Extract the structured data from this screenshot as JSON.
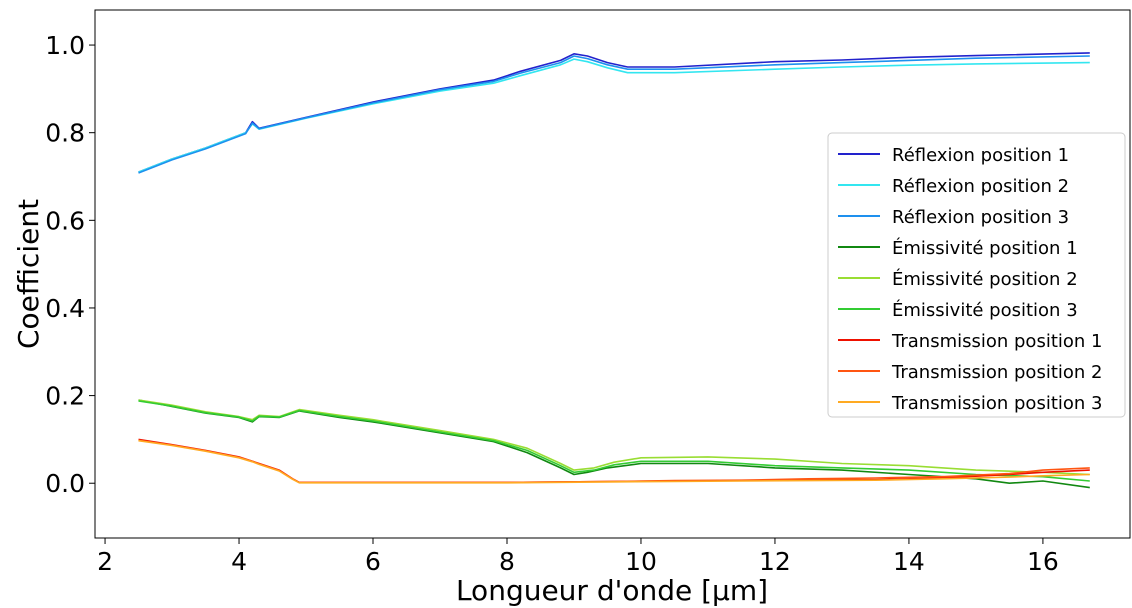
{
  "chart_data": {
    "type": "line",
    "title": "",
    "xlabel": "Longueur d'onde [µm]",
    "ylabel": "Coefficient",
    "xlim": [
      1.85,
      17.3
    ],
    "ylim": [
      -0.125,
      1.08
    ],
    "xticks": [
      2,
      4,
      6,
      8,
      10,
      12,
      14,
      16
    ],
    "yticks": [
      0.0,
      0.2,
      0.4,
      0.6,
      0.8,
      1.0
    ],
    "xtick_labels": [
      "2",
      "4",
      "6",
      "8",
      "10",
      "12",
      "14",
      "16"
    ],
    "ytick_labels": [
      "0.0",
      "0.2",
      "0.4",
      "0.6",
      "0.8",
      "1.0"
    ],
    "grid": false,
    "legend_position": "right",
    "series": [
      {
        "name": "Réflexion position 1",
        "color": "#2222cc",
        "points": [
          [
            2.5,
            0.71
          ],
          [
            3.0,
            0.74
          ],
          [
            3.5,
            0.765
          ],
          [
            4.1,
            0.8
          ],
          [
            4.2,
            0.825
          ],
          [
            4.3,
            0.81
          ],
          [
            5.0,
            0.835
          ],
          [
            6.0,
            0.87
          ],
          [
            7.0,
            0.9
          ],
          [
            7.8,
            0.92
          ],
          [
            8.2,
            0.94
          ],
          [
            8.8,
            0.965
          ],
          [
            9.0,
            0.98
          ],
          [
            9.2,
            0.975
          ],
          [
            9.5,
            0.96
          ],
          [
            9.8,
            0.95
          ],
          [
            10.5,
            0.95
          ],
          [
            12.0,
            0.962
          ],
          [
            13.0,
            0.966
          ],
          [
            14.0,
            0.972
          ],
          [
            15.0,
            0.976
          ],
          [
            16.7,
            0.982
          ]
        ]
      },
      {
        "name": "Réflexion position 2",
        "color": "#33e6f0",
        "points": [
          [
            2.5,
            0.71
          ],
          [
            3.0,
            0.74
          ],
          [
            3.5,
            0.765
          ],
          [
            4.1,
            0.8
          ],
          [
            4.2,
            0.82
          ],
          [
            4.3,
            0.808
          ],
          [
            5.0,
            0.833
          ],
          [
            6.0,
            0.866
          ],
          [
            7.0,
            0.895
          ],
          [
            7.8,
            0.913
          ],
          [
            8.2,
            0.93
          ],
          [
            8.8,
            0.955
          ],
          [
            9.0,
            0.968
          ],
          [
            9.2,
            0.962
          ],
          [
            9.5,
            0.948
          ],
          [
            9.8,
            0.937
          ],
          [
            10.5,
            0.937
          ],
          [
            12.0,
            0.945
          ],
          [
            13.0,
            0.95
          ],
          [
            14.0,
            0.954
          ],
          [
            15.0,
            0.957
          ],
          [
            16.7,
            0.96
          ]
        ]
      },
      {
        "name": "Réflexion position 3",
        "color": "#1e90ee",
        "points": [
          [
            2.5,
            0.708
          ],
          [
            3.0,
            0.738
          ],
          [
            3.5,
            0.763
          ],
          [
            4.1,
            0.798
          ],
          [
            4.2,
            0.822
          ],
          [
            4.3,
            0.809
          ],
          [
            5.0,
            0.834
          ],
          [
            6.0,
            0.868
          ],
          [
            7.0,
            0.898
          ],
          [
            7.8,
            0.917
          ],
          [
            8.2,
            0.936
          ],
          [
            8.8,
            0.96
          ],
          [
            9.0,
            0.975
          ],
          [
            9.2,
            0.969
          ],
          [
            9.5,
            0.955
          ],
          [
            9.8,
            0.945
          ],
          [
            10.5,
            0.945
          ],
          [
            12.0,
            0.955
          ],
          [
            13.0,
            0.96
          ],
          [
            14.0,
            0.965
          ],
          [
            15.0,
            0.97
          ],
          [
            16.7,
            0.975
          ]
        ]
      },
      {
        "name": "Émissivité position 1",
        "color": "#118811",
        "points": [
          [
            2.5,
            0.19
          ],
          [
            3.0,
            0.175
          ],
          [
            3.5,
            0.16
          ],
          [
            4.0,
            0.15
          ],
          [
            4.2,
            0.14
          ],
          [
            4.3,
            0.152
          ],
          [
            4.6,
            0.15
          ],
          [
            4.9,
            0.165
          ],
          [
            5.5,
            0.15
          ],
          [
            6.0,
            0.14
          ],
          [
            7.0,
            0.115
          ],
          [
            7.8,
            0.095
          ],
          [
            8.3,
            0.07
          ],
          [
            8.8,
            0.035
          ],
          [
            9.0,
            0.02
          ],
          [
            9.2,
            0.025
          ],
          [
            9.5,
            0.035
          ],
          [
            10.0,
            0.045
          ],
          [
            11.0,
            0.045
          ],
          [
            12.0,
            0.035
          ],
          [
            13.0,
            0.03
          ],
          [
            14.0,
            0.02
          ],
          [
            15.0,
            0.01
          ],
          [
            15.5,
            0.0
          ],
          [
            16.0,
            0.005
          ],
          [
            16.7,
            -0.01
          ]
        ]
      },
      {
        "name": "Émissivité position 2",
        "color": "#99dd33",
        "points": [
          [
            2.5,
            0.19
          ],
          [
            3.0,
            0.178
          ],
          [
            3.5,
            0.163
          ],
          [
            4.0,
            0.152
          ],
          [
            4.2,
            0.145
          ],
          [
            4.3,
            0.155
          ],
          [
            4.6,
            0.152
          ],
          [
            4.9,
            0.168
          ],
          [
            5.5,
            0.155
          ],
          [
            6.0,
            0.145
          ],
          [
            7.0,
            0.12
          ],
          [
            7.8,
            0.1
          ],
          [
            8.3,
            0.08
          ],
          [
            8.8,
            0.045
          ],
          [
            9.0,
            0.03
          ],
          [
            9.3,
            0.035
          ],
          [
            9.6,
            0.048
          ],
          [
            10.0,
            0.058
          ],
          [
            11.0,
            0.06
          ],
          [
            12.0,
            0.055
          ],
          [
            13.0,
            0.045
          ],
          [
            14.0,
            0.04
          ],
          [
            15.0,
            0.03
          ],
          [
            16.0,
            0.025
          ],
          [
            16.7,
            0.02
          ]
        ]
      },
      {
        "name": "Émissivité position 3",
        "color": "#33cc33",
        "points": [
          [
            2.5,
            0.188
          ],
          [
            3.0,
            0.176
          ],
          [
            3.5,
            0.161
          ],
          [
            4.0,
            0.151
          ],
          [
            4.2,
            0.142
          ],
          [
            4.3,
            0.153
          ],
          [
            4.6,
            0.151
          ],
          [
            4.9,
            0.166
          ],
          [
            5.5,
            0.152
          ],
          [
            6.0,
            0.142
          ],
          [
            7.0,
            0.117
          ],
          [
            7.8,
            0.097
          ],
          [
            8.3,
            0.075
          ],
          [
            8.8,
            0.04
          ],
          [
            9.0,
            0.025
          ],
          [
            9.3,
            0.03
          ],
          [
            9.6,
            0.042
          ],
          [
            10.0,
            0.05
          ],
          [
            11.0,
            0.05
          ],
          [
            12.0,
            0.04
          ],
          [
            13.0,
            0.035
          ],
          [
            14.0,
            0.03
          ],
          [
            15.0,
            0.02
          ],
          [
            16.0,
            0.015
          ],
          [
            16.7,
            0.005
          ]
        ]
      },
      {
        "name": "Transmission position 1",
        "color": "#ee1100",
        "points": [
          [
            2.5,
            0.1
          ],
          [
            3.0,
            0.088
          ],
          [
            3.5,
            0.075
          ],
          [
            4.0,
            0.06
          ],
          [
            4.2,
            0.05
          ],
          [
            4.3,
            0.045
          ],
          [
            4.6,
            0.03
          ],
          [
            4.8,
            0.01
          ],
          [
            4.9,
            0.002
          ],
          [
            6.0,
            0.002
          ],
          [
            8.0,
            0.002
          ],
          [
            9.5,
            0.004
          ],
          [
            10.5,
            0.005
          ],
          [
            11.5,
            0.006
          ],
          [
            12.5,
            0.008
          ],
          [
            13.5,
            0.008
          ],
          [
            14.5,
            0.012
          ],
          [
            15.5,
            0.02
          ],
          [
            16.0,
            0.025
          ],
          [
            16.7,
            0.03
          ]
        ]
      },
      {
        "name": "Transmission position 2",
        "color": "#ff5511",
        "points": [
          [
            2.5,
            0.098
          ],
          [
            3.0,
            0.087
          ],
          [
            3.5,
            0.074
          ],
          [
            4.0,
            0.059
          ],
          [
            4.2,
            0.05
          ],
          [
            4.3,
            0.044
          ],
          [
            4.6,
            0.029
          ],
          [
            4.8,
            0.01
          ],
          [
            4.9,
            0.002
          ],
          [
            6.0,
            0.002
          ],
          [
            8.0,
            0.002
          ],
          [
            9.5,
            0.004
          ],
          [
            10.5,
            0.006
          ],
          [
            11.5,
            0.007
          ],
          [
            12.5,
            0.01
          ],
          [
            13.5,
            0.012
          ],
          [
            14.5,
            0.015
          ],
          [
            15.5,
            0.022
          ],
          [
            16.0,
            0.03
          ],
          [
            16.7,
            0.035
          ]
        ]
      },
      {
        "name": "Transmission position 3",
        "color": "#ffaa22",
        "points": [
          [
            2.5,
            0.097
          ],
          [
            3.0,
            0.086
          ],
          [
            3.5,
            0.073
          ],
          [
            4.0,
            0.058
          ],
          [
            4.2,
            0.049
          ],
          [
            4.3,
            0.043
          ],
          [
            4.6,
            0.028
          ],
          [
            4.8,
            0.009
          ],
          [
            4.9,
            0.001
          ],
          [
            6.0,
            0.001
          ],
          [
            8.0,
            0.001
          ],
          [
            9.5,
            0.003
          ],
          [
            10.5,
            0.004
          ],
          [
            11.5,
            0.005
          ],
          [
            12.5,
            0.006
          ],
          [
            13.5,
            0.007
          ],
          [
            14.5,
            0.01
          ],
          [
            15.5,
            0.014
          ],
          [
            16.0,
            0.017
          ],
          [
            16.7,
            0.02
          ]
        ]
      }
    ]
  }
}
